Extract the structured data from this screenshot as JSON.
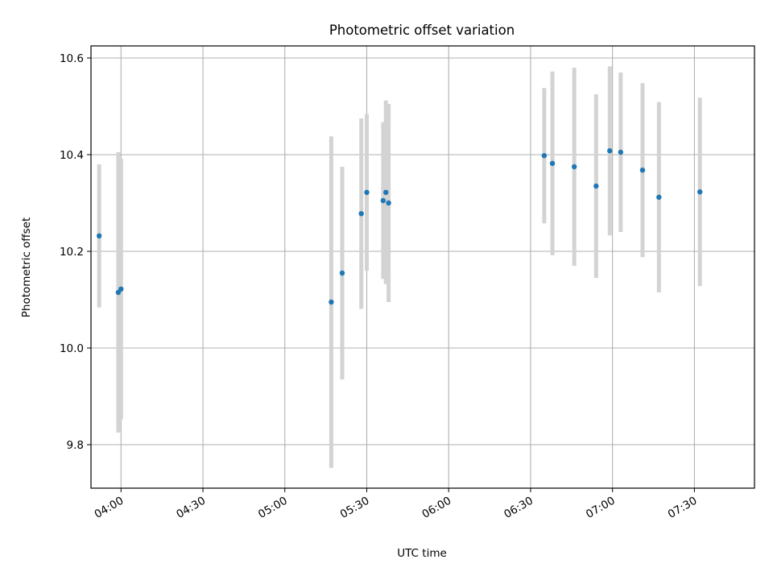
{
  "chart_data": {
    "type": "scatter",
    "title": "Photometric offset variation",
    "xlabel": "UTC time",
    "ylabel": "Photometric offset",
    "x_axis_type": "time",
    "xlim": [
      "03:49",
      "07:52"
    ],
    "ylim": [
      9.71,
      10.625
    ],
    "x_ticks": [
      "04:00",
      "04:30",
      "05:00",
      "05:30",
      "06:00",
      "06:30",
      "07:00",
      "07:30"
    ],
    "y_ticks": [
      9.8,
      10.0,
      10.2,
      10.4,
      10.6
    ],
    "y_tick_labels": [
      "9.8",
      "10.0",
      "10.2",
      "10.4",
      "10.6"
    ],
    "grid": true,
    "legend": "none",
    "error_bars": true,
    "colors": {
      "points": "#1f77b4",
      "error_bars": "#d3d3d3",
      "grid": "#b0b0b0"
    },
    "series": [
      {
        "points": [
          {
            "x": "03:52",
            "y": 10.232,
            "yerr": 0.148
          },
          {
            "x": "03:59",
            "y": 10.115,
            "yerr": 0.29
          },
          {
            "x": "04:00",
            "y": 10.122,
            "yerr": 0.27
          },
          {
            "x": "05:17",
            "y": 10.095,
            "yerr": 0.343
          },
          {
            "x": "05:21",
            "y": 10.155,
            "yerr": 0.22
          },
          {
            "x": "05:28",
            "y": 10.278,
            "yerr": 0.197
          },
          {
            "x": "05:30",
            "y": 10.322,
            "yerr": 0.162
          },
          {
            "x": "05:36",
            "y": 10.305,
            "yerr": 0.162
          },
          {
            "x": "05:37",
            "y": 10.322,
            "yerr": 0.19
          },
          {
            "x": "05:38",
            "y": 10.3,
            "yerr": 0.205
          },
          {
            "x": "06:35",
            "y": 10.398,
            "yerr": 0.14
          },
          {
            "x": "06:38",
            "y": 10.382,
            "yerr": 0.19
          },
          {
            "x": "06:46",
            "y": 10.375,
            "yerr": 0.205
          },
          {
            "x": "06:54",
            "y": 10.335,
            "yerr": 0.19
          },
          {
            "x": "06:59",
            "y": 10.408,
            "yerr": 0.175
          },
          {
            "x": "07:03",
            "y": 10.405,
            "yerr": 0.165
          },
          {
            "x": "07:11",
            "y": 10.368,
            "yerr": 0.18
          },
          {
            "x": "07:17",
            "y": 10.312,
            "yerr": 0.197
          },
          {
            "x": "07:32",
            "y": 10.323,
            "yerr": 0.195
          }
        ]
      }
    ]
  }
}
